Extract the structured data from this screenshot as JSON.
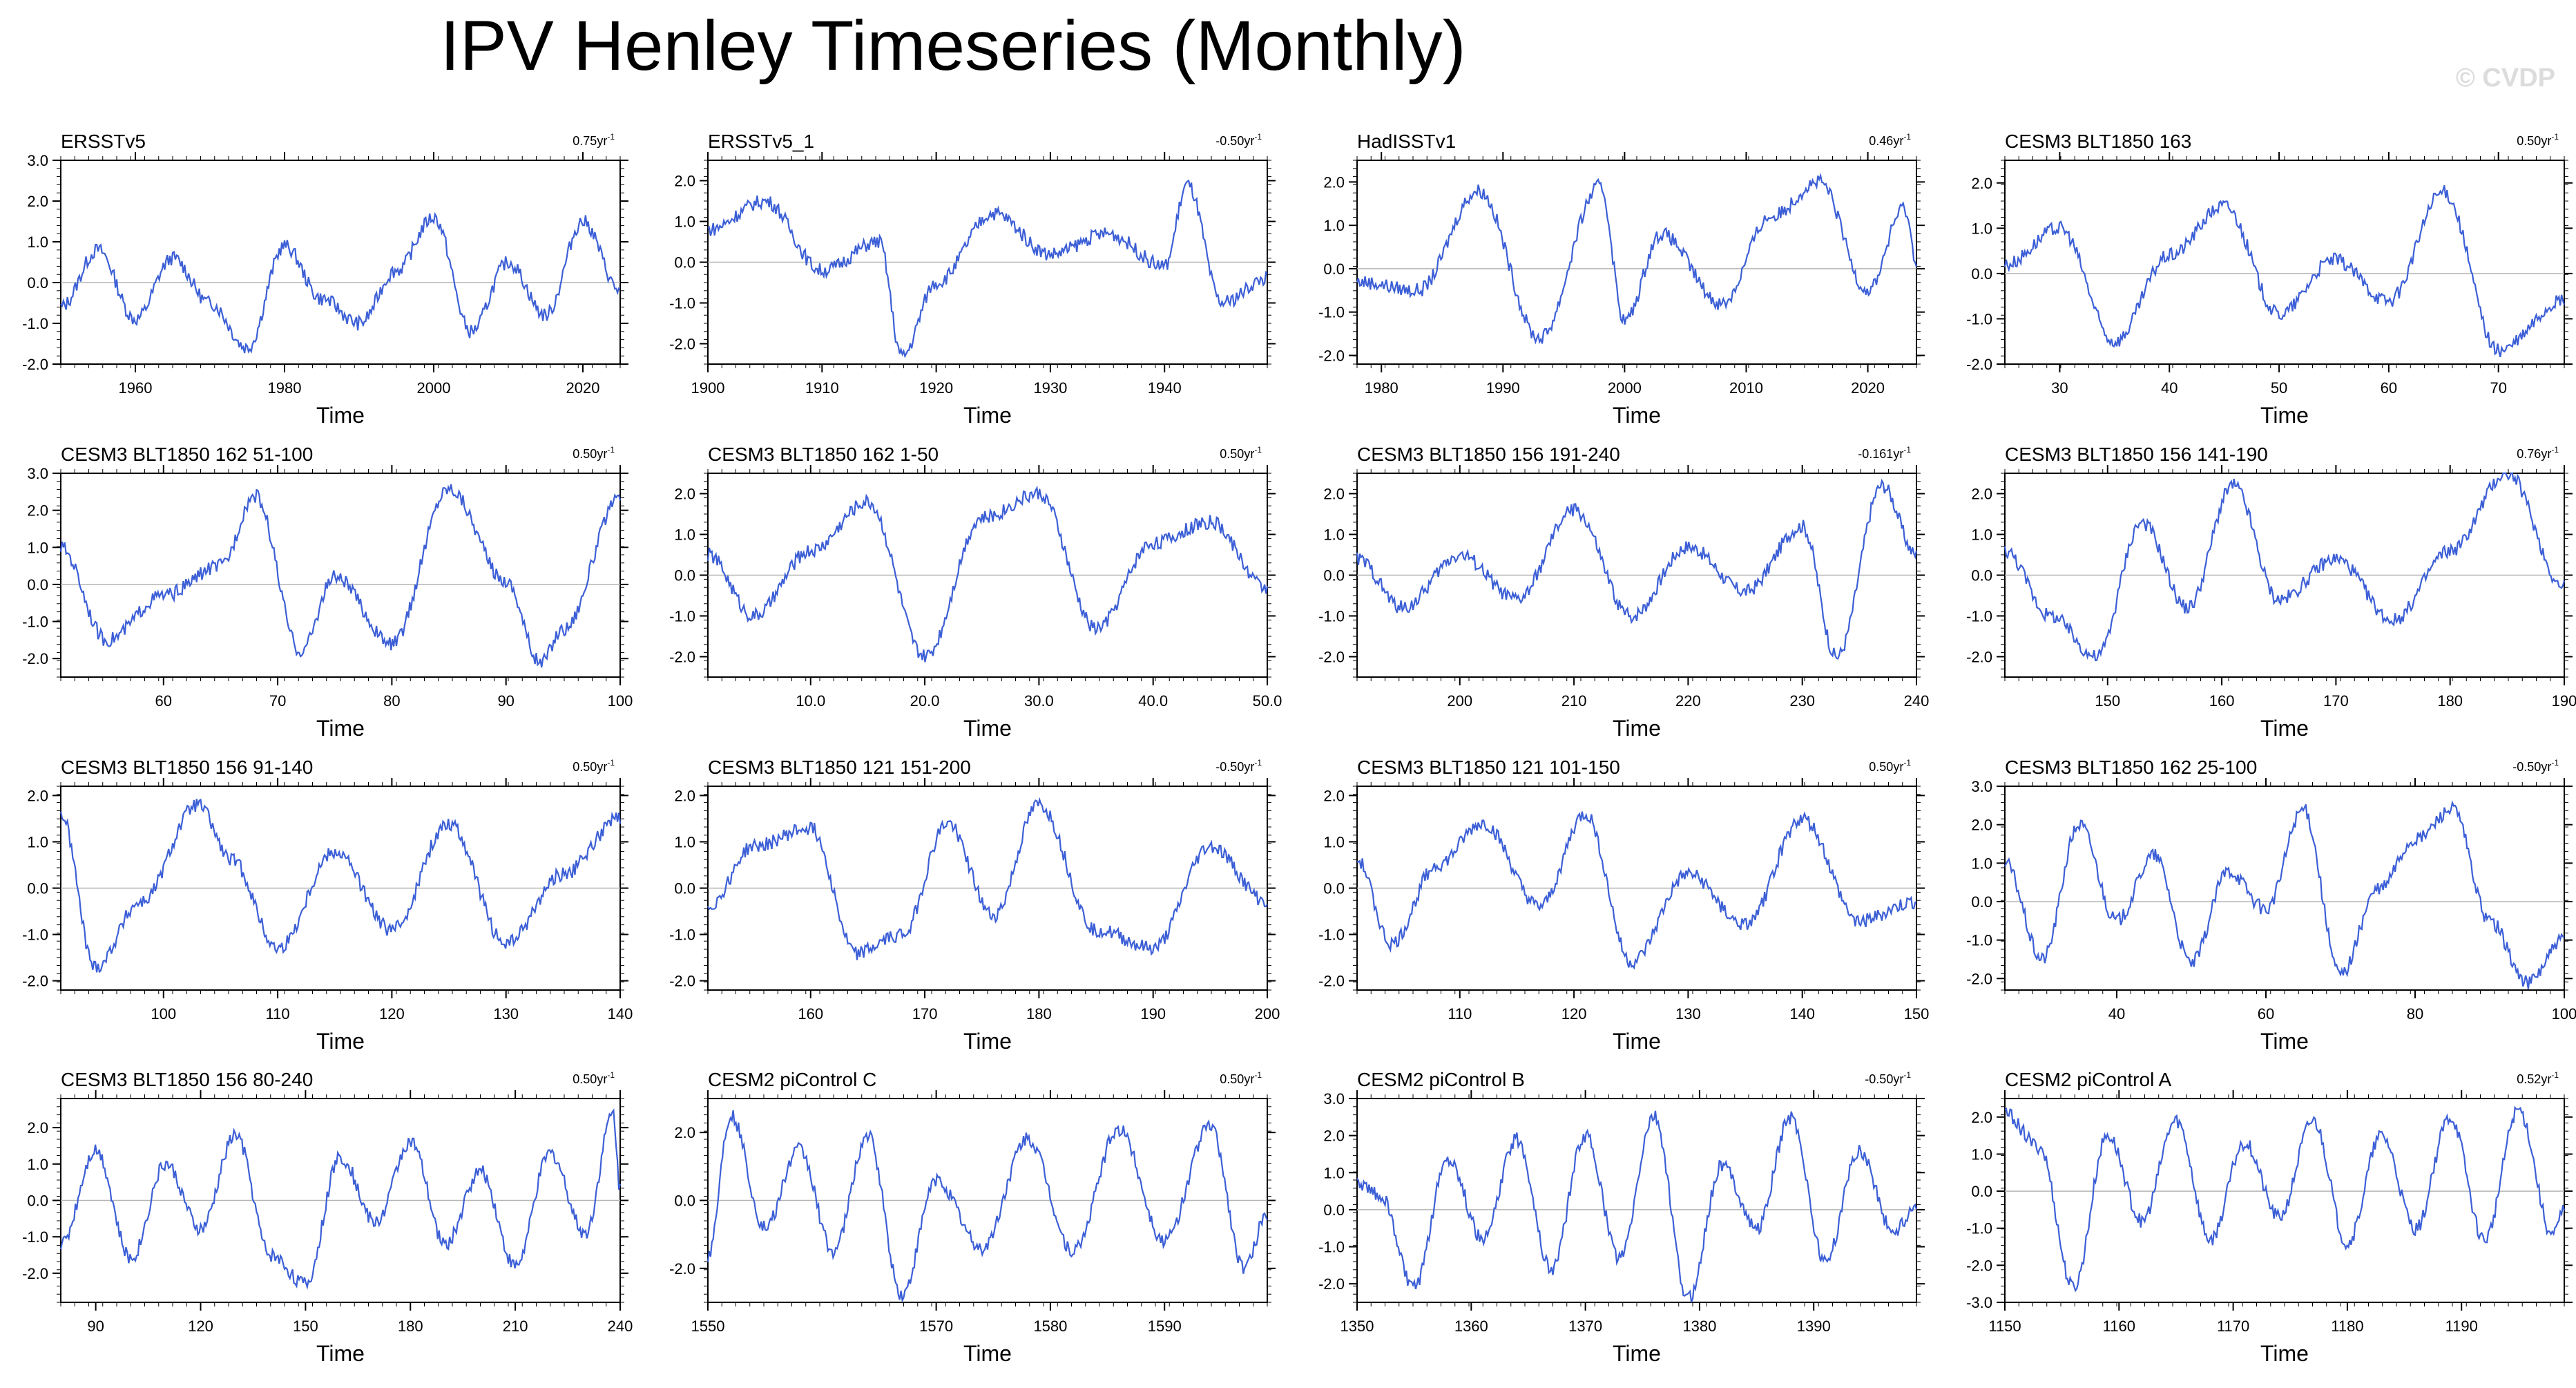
{
  "title": "IPV Henley Timeseries (Monthly)",
  "watermark": "© CVDP",
  "chart_data": [
    {
      "type": "line",
      "title": "ERSSTv5",
      "trend": "0.75yr",
      "xlabel": "Time",
      "xlim": [
        1950,
        2025
      ],
      "xticks": [
        1960,
        1980,
        2000,
        2020
      ],
      "ylim": [
        -2,
        3
      ],
      "yticks": [
        "3.0",
        "2.0",
        "1.0",
        "0.0",
        "-1.0",
        "-2.0"
      ],
      "zero_line": true,
      "series": [
        {
          "color": "#3c5fd6",
          "x": [
            1950,
            1955,
            1960,
            1965,
            1970,
            1975,
            1980,
            1985,
            1990,
            1995,
            2000,
            2005,
            2010,
            2015,
            2020,
            2025
          ],
          "y": [
            -0.6,
            0.8,
            -0.9,
            0.6,
            -0.5,
            -1.6,
            0.9,
            -0.4,
            -1.0,
            0.3,
            1.6,
            -1.2,
            0.5,
            -0.8,
            1.5,
            -0.2
          ]
        }
      ]
    },
    {
      "type": "line",
      "title": "ERSSTv5_1",
      "trend": "-0.50yr",
      "xlabel": "Time",
      "xlim": [
        1900,
        1949
      ],
      "xticks": [
        1900,
        1910,
        1920,
        1930,
        1940
      ],
      "ylim": [
        -2.5,
        2.5
      ],
      "yticks": [
        "2.0",
        "1.0",
        "0.0",
        "-1.0",
        "-2.0"
      ],
      "zero_line": true,
      "series": [
        {
          "color": "#3c5fd6",
          "x": [
            1900,
            1905,
            1910,
            1915,
            1917,
            1920,
            1925,
            1930,
            1935,
            1940,
            1942,
            1945,
            1949
          ],
          "y": [
            0.8,
            1.5,
            -0.2,
            0.5,
            -2.3,
            -0.5,
            1.2,
            0.2,
            0.7,
            -0.1,
            1.9,
            -1.0,
            -0.4
          ]
        }
      ]
    },
    {
      "type": "line",
      "title": "HadISSTv1",
      "trend": "0.46yr",
      "xlabel": "Time",
      "xlim": [
        1978,
        2024
      ],
      "xticks": [
        1980,
        1990,
        2000,
        2010,
        2020
      ],
      "ylim": [
        -2.2,
        2.5
      ],
      "yticks": [
        "2.0",
        "1.0",
        "0.0",
        "-1.0",
        "-2.0"
      ],
      "zero_line": true,
      "series": [
        {
          "color": "#3c5fd6",
          "x": [
            1978,
            1983,
            1988,
            1993,
            1998,
            2000,
            2003,
            2008,
            2012,
            2016,
            2020,
            2023,
            2024
          ],
          "y": [
            -0.3,
            -0.5,
            1.8,
            -1.6,
            1.9,
            -1.2,
            0.8,
            -0.8,
            1.2,
            2.0,
            -0.5,
            1.4,
            0.2
          ]
        }
      ]
    },
    {
      "type": "line",
      "title": "CESM3 BLT1850 163",
      "trend": "0.50yr",
      "xlabel": "Time",
      "xlim": [
        25,
        76
      ],
      "xticks": [
        30,
        40,
        50,
        60,
        70
      ],
      "ylim": [
        -2,
        2.5
      ],
      "yticks": [
        "2.0",
        "1.0",
        "0.0",
        "-1.0",
        "-2.0"
      ],
      "zero_line": true,
      "series": [
        {
          "color": "#3c5fd6",
          "x": [
            25,
            30,
            35,
            40,
            45,
            50,
            55,
            60,
            65,
            70,
            76
          ],
          "y": [
            0.2,
            1.0,
            -1.5,
            0.4,
            1.5,
            -0.9,
            0.3,
            -0.6,
            1.8,
            -1.7,
            -0.6
          ]
        }
      ]
    },
    {
      "type": "line",
      "title": "CESM3 BLT1850 162 51-100",
      "trend": "0.50yr",
      "xlabel": "Time",
      "xlim": [
        51,
        100
      ],
      "xticks": [
        60,
        70,
        80,
        90,
        100
      ],
      "ylim": [
        -2.5,
        3
      ],
      "yticks": [
        "3.0",
        "2.0",
        "1.0",
        "0.0",
        "-1.0",
        "-2.0"
      ],
      "zero_line": true,
      "series": [
        {
          "color": "#3c5fd6",
          "x": [
            51,
            55,
            60,
            65,
            68,
            72,
            75,
            80,
            85,
            90,
            93,
            95,
            100
          ],
          "y": [
            1.0,
            -1.5,
            -0.3,
            0.5,
            2.4,
            -1.8,
            0.2,
            -1.6,
            2.6,
            0.1,
            -2.1,
            -1.2,
            2.3
          ]
        }
      ]
    },
    {
      "type": "line",
      "title": "CESM3 BLT1850 162 1-50",
      "trend": "0.50yr",
      "xlabel": "Time",
      "xlim": [
        1,
        50
      ],
      "xticks": [
        "10.0",
        "20.0",
        "30.0",
        "40.0",
        "50.0"
      ],
      "ylim": [
        -2.5,
        2.5
      ],
      "yticks": [
        "2.0",
        "1.0",
        "0.0",
        "-1.0",
        "-2.0"
      ],
      "zero_line": true,
      "series": [
        {
          "color": "#3c5fd6",
          "x": [
            1,
            5,
            10,
            15,
            20,
            25,
            30,
            35,
            40,
            45,
            50
          ],
          "y": [
            0.5,
            -1.0,
            0.6,
            1.8,
            -2.0,
            1.4,
            2.0,
            -1.3,
            0.8,
            1.3,
            -0.3
          ]
        }
      ]
    },
    {
      "type": "line",
      "title": "CESM3 BLT1850 156 191-240",
      "trend": "-0.161yr",
      "xlabel": "Time",
      "xlim": [
        191,
        240
      ],
      "xticks": [
        200,
        210,
        220,
        230,
        240
      ],
      "ylim": [
        -2.5,
        2.5
      ],
      "yticks": [
        "2.0",
        "1.0",
        "0.0",
        "-1.0",
        "-2.0"
      ],
      "zero_line": true,
      "series": [
        {
          "color": "#3c5fd6",
          "x": [
            191,
            195,
            200,
            205,
            210,
            215,
            220,
            225,
            230,
            233,
            237,
            240
          ],
          "y": [
            0.4,
            -0.8,
            0.5,
            -0.6,
            1.6,
            -1.0,
            0.7,
            -0.4,
            1.2,
            -2.0,
            2.2,
            0.5
          ]
        }
      ]
    },
    {
      "type": "line",
      "title": "CESM3 BLT1850 156 141-190",
      "trend": "0.76yr",
      "xlabel": "Time",
      "xlim": [
        141,
        190
      ],
      "xticks": [
        150,
        160,
        170,
        180,
        190
      ],
      "ylim": [
        -2.5,
        2.5
      ],
      "yticks": [
        "2.0",
        "1.0",
        "0.0",
        "-1.0",
        "-2.0"
      ],
      "zero_line": true,
      "series": [
        {
          "color": "#3c5fd6",
          "x": [
            141,
            145,
            149,
            153,
            157,
            161,
            165,
            170,
            175,
            180,
            185,
            190
          ],
          "y": [
            0.6,
            -1.0,
            -2.0,
            1.3,
            -0.8,
            2.2,
            -0.6,
            0.4,
            -1.1,
            0.6,
            2.5,
            -0.3
          ]
        }
      ]
    },
    {
      "type": "line",
      "title": "CESM3 BLT1850 156 91-140",
      "trend": "0.50yr",
      "xlabel": "Time",
      "xlim": [
        91,
        140
      ],
      "xticks": [
        100,
        110,
        120,
        130,
        140
      ],
      "ylim": [
        -2.2,
        2.2
      ],
      "yticks": [
        "2.0",
        "1.0",
        "0.0",
        "-1.0",
        "-2.0"
      ],
      "zero_line": true,
      "series": [
        {
          "color": "#3c5fd6",
          "x": [
            91,
            94,
            98,
            103,
            106,
            110,
            115,
            120,
            125,
            130,
            135,
            140
          ],
          "y": [
            1.6,
            -1.7,
            -0.3,
            1.8,
            0.6,
            -1.3,
            0.8,
            -0.9,
            1.4,
            -1.2,
            0.3,
            1.5
          ]
        }
      ]
    },
    {
      "type": "line",
      "title": "CESM3 BLT1850 121 151-200",
      "trend": "-0.50yr",
      "xlabel": "Time",
      "xlim": [
        151,
        200
      ],
      "xticks": [
        160,
        170,
        180,
        190,
        200
      ],
      "ylim": [
        -2.2,
        2.2
      ],
      "yticks": [
        "2.0",
        "1.0",
        "0.0",
        "-1.0",
        "-2.0"
      ],
      "zero_line": true,
      "series": [
        {
          "color": "#3c5fd6",
          "x": [
            151,
            155,
            160,
            164,
            168,
            172,
            176,
            180,
            185,
            190,
            195,
            200
          ],
          "y": [
            -0.4,
            0.9,
            1.3,
            -1.4,
            -1.0,
            1.4,
            -0.6,
            1.8,
            -0.9,
            -1.3,
            0.9,
            -0.3
          ]
        }
      ]
    },
    {
      "type": "line",
      "title": "CESM3 BLT1850 121 101-150",
      "trend": "0.50yr",
      "xlabel": "Time",
      "xlim": [
        101,
        150
      ],
      "xticks": [
        110,
        120,
        130,
        140,
        150
      ],
      "ylim": [
        -2.2,
        2.2
      ],
      "yticks": [
        "2.0",
        "1.0",
        "0.0",
        "-1.0",
        "-2.0"
      ],
      "zero_line": true,
      "series": [
        {
          "color": "#3c5fd6",
          "x": [
            101,
            104,
            108,
            112,
            117,
            121,
            125,
            130,
            135,
            140,
            145,
            150
          ],
          "y": [
            0.6,
            -1.2,
            0.5,
            1.4,
            -0.4,
            1.6,
            -1.6,
            0.3,
            -0.8,
            1.5,
            -0.7,
            -0.3
          ]
        }
      ]
    },
    {
      "type": "line",
      "title": "CESM3 BLT1850 162 25-100",
      "trend": "-0.50yr",
      "xlabel": "Time",
      "xlim": [
        25,
        100
      ],
      "xticks": [
        40,
        60,
        80,
        100
      ],
      "ylim": [
        -2.3,
        3
      ],
      "yticks": [
        "3.0",
        "2.0",
        "1.0",
        "0.0",
        "-1.0",
        "-2.0"
      ],
      "zero_line": true,
      "series": [
        {
          "color": "#3c5fd6",
          "x": [
            25,
            30,
            35,
            40,
            45,
            50,
            55,
            60,
            65,
            70,
            75,
            80,
            85,
            90,
            95,
            100
          ],
          "y": [
            1.0,
            -1.5,
            2.0,
            -0.5,
            1.2,
            -1.6,
            0.8,
            -0.2,
            2.4,
            -1.9,
            0.3,
            1.6,
            2.4,
            -0.5,
            -2.1,
            -1.0
          ]
        }
      ]
    },
    {
      "type": "line",
      "title": "CESM3 BLT1850 156 80-240",
      "trend": "0.50yr",
      "xlabel": "Time",
      "xlim": [
        80,
        240
      ],
      "xticks": [
        90,
        120,
        150,
        180,
        210,
        240
      ],
      "ylim": [
        -2.8,
        2.8
      ],
      "yticks": [
        "2.0",
        "1.0",
        "0.0",
        "-1.0",
        "-2.0"
      ],
      "zero_line": true,
      "series": [
        {
          "color": "#3c5fd6",
          "x": [
            80,
            90,
            100,
            110,
            120,
            130,
            140,
            150,
            160,
            170,
            180,
            190,
            200,
            210,
            220,
            230,
            238,
            240
          ],
          "y": [
            -1.2,
            1.4,
            -1.6,
            1.0,
            -0.8,
            1.8,
            -1.5,
            -2.3,
            1.2,
            -0.6,
            1.6,
            -1.2,
            0.8,
            -1.8,
            1.3,
            -0.9,
            2.4,
            0.3
          ]
        }
      ]
    },
    {
      "type": "line",
      "title": "CESM2 piControl C",
      "trend": "0.50yr",
      "xlabel": "Time",
      "xlim": [
        1550,
        1599
      ],
      "xticks": [
        1550,
        1570,
        1580,
        1590
      ],
      "ylim": [
        -3,
        3
      ],
      "yticks": [
        "2.0",
        "0.0",
        "-2.0"
      ],
      "zero_line": true,
      "series": [
        {
          "color": "#3c5fd6",
          "x": [
            1550,
            1552,
            1555,
            1558,
            1561,
            1564,
            1567,
            1570,
            1574,
            1578,
            1582,
            1586,
            1590,
            1594,
            1597,
            1599
          ],
          "y": [
            -1.6,
            2.5,
            -0.8,
            1.5,
            -1.5,
            1.9,
            -2.8,
            0.6,
            -1.4,
            1.8,
            -1.5,
            2.1,
            -1.2,
            2.2,
            -2.0,
            -0.4
          ]
        }
      ]
    },
    {
      "type": "line",
      "title": "CESM2 piControl B",
      "trend": "-0.50yr",
      "xlabel": "Time",
      "xlim": [
        1350,
        1399
      ],
      "xticks": [
        1350,
        1360,
        1370,
        1380,
        1390
      ],
      "ylim": [
        -2.5,
        3
      ],
      "yticks": [
        "3.0",
        "2.0",
        "1.0",
        "0.0",
        "-1.0",
        "-2.0"
      ],
      "zero_line": true,
      "series": [
        {
          "color": "#3c5fd6",
          "x": [
            1350,
            1352,
            1355,
            1358,
            1361,
            1364,
            1367,
            1370,
            1373,
            1376,
            1379,
            1382,
            1385,
            1388,
            1391,
            1394,
            1397,
            1399
          ],
          "y": [
            0.7,
            0.4,
            -2.1,
            1.4,
            -0.8,
            1.9,
            -1.6,
            2.0,
            -1.3,
            2.5,
            -2.4,
            1.2,
            -0.5,
            2.5,
            -1.4,
            1.6,
            -0.6,
            0.1
          ]
        }
      ]
    },
    {
      "type": "line",
      "title": "CESM2 piControl A",
      "trend": "0.52yr",
      "xlabel": "Time",
      "xlim": [
        1150,
        1199
      ],
      "xticks": [
        1150,
        1160,
        1170,
        1180,
        1190
      ],
      "ylim": [
        -3,
        2.5
      ],
      "yticks": [
        "2.0",
        "1.0",
        "0.0",
        "-1.0",
        "-2.0",
        "-3.0"
      ],
      "zero_line": true,
      "series": [
        {
          "color": "#3c5fd6",
          "x": [
            1150,
            1153,
            1156,
            1159,
            1162,
            1165,
            1168,
            1171,
            1174,
            1177,
            1180,
            1183,
            1186,
            1189,
            1192,
            1195,
            1198,
            1199
          ],
          "y": [
            2.1,
            1.2,
            -2.6,
            1.5,
            -0.8,
            1.9,
            -1.3,
            1.3,
            -0.7,
            1.9,
            -1.4,
            1.5,
            -1.0,
            2.0,
            -1.3,
            2.2,
            -1.2,
            -0.5
          ]
        }
      ]
    }
  ]
}
